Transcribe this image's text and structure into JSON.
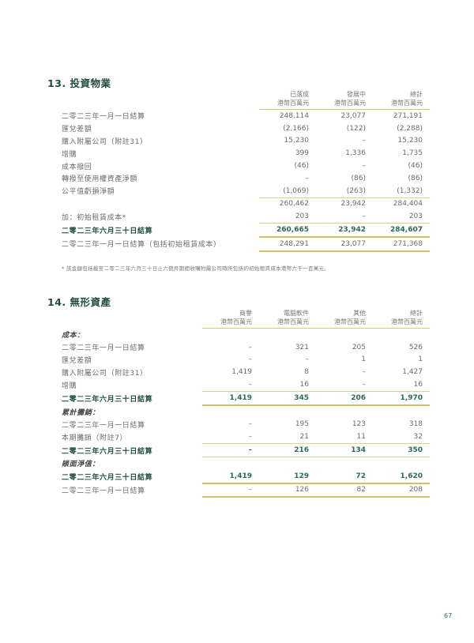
{
  "section13": {
    "heading": "13. 投資物業",
    "columns": [
      {
        "name": "已落成",
        "unit": "港幣百萬元"
      },
      {
        "name": "發展中",
        "unit": "港幣百萬元"
      },
      {
        "name": "總計",
        "unit": "港幣百萬元"
      }
    ],
    "rows": [
      {
        "label": "二零二三年一月一日結算",
        "values": [
          "248,114",
          "23,077",
          "271,191"
        ],
        "style": ""
      },
      {
        "label": "匯兌差額",
        "values": [
          "(2,166)",
          "(122)",
          "(2,288)"
        ],
        "style": ""
      },
      {
        "label": "購入附屬公司（附註31）",
        "values": [
          "15,230",
          "–",
          "15,230"
        ],
        "style": ""
      },
      {
        "label": "增購",
        "values": [
          "399",
          "1,336",
          "1,735"
        ],
        "style": ""
      },
      {
        "label": "成本撥回",
        "values": [
          "(46)",
          "–",
          "(46)"
        ],
        "style": ""
      },
      {
        "label": "轉撥至使用權資產淨額",
        "values": [
          "–",
          "(86)",
          "(86)"
        ],
        "style": ""
      },
      {
        "label": "公平值虧損淨額",
        "values": [
          "(1,069)",
          "(263)",
          "(1,332)"
        ],
        "style": ""
      },
      {
        "label": "",
        "values": [
          "260,462",
          "23,942",
          "284,404"
        ],
        "style": "top"
      },
      {
        "label": "加：初始租賃成本*",
        "values": [
          "203",
          "–",
          "203"
        ],
        "style": ""
      },
      {
        "label": "二零二三年六月三十日結算",
        "values": [
          "260,665",
          "23,942",
          "284,607"
        ],
        "style": "top bold dbl"
      },
      {
        "label": "二零二三年一月一日結算（包括初始租賃成本）",
        "values": [
          "248,291",
          "23,077",
          "271,368"
        ],
        "style": "dbl"
      }
    ],
    "footnote": "* 該金額包括截至二零二三年六月三十日止六個月期間收購附屬公司時所包括的初始租賃成本港幣六千一百萬元。"
  },
  "section14": {
    "heading": "14. 無形資產",
    "columns": [
      {
        "name": "商譽",
        "unit": "港幣百萬元"
      },
      {
        "name": "電腦軟件",
        "unit": "港幣百萬元"
      },
      {
        "name": "其他",
        "unit": "港幣百萬元"
      },
      {
        "name": "總計",
        "unit": "港幣百萬元"
      }
    ],
    "rows": [
      {
        "label": "成本：",
        "values": [
          "",
          "",
          "",
          ""
        ],
        "style": "ital"
      },
      {
        "label": "二零二三年一月一日結算",
        "values": [
          "–",
          "321",
          "205",
          "526"
        ],
        "style": ""
      },
      {
        "label": "匯兌差額",
        "values": [
          "–",
          "–",
          "1",
          "1"
        ],
        "style": ""
      },
      {
        "label": "購入附屬公司（附註31）",
        "values": [
          "1,419",
          "8",
          "–",
          "1,427"
        ],
        "style": ""
      },
      {
        "label": "增購",
        "values": [
          "–",
          "16",
          "–",
          "16"
        ],
        "style": ""
      },
      {
        "label": "二零二三年六月三十日結算",
        "values": [
          "1,419",
          "345",
          "206",
          "1,970"
        ],
        "style": "top bold dbl"
      },
      {
        "label": "累計攤銷：",
        "values": [
          "",
          "",
          "",
          ""
        ],
        "style": "ital"
      },
      {
        "label": "二零二三年一月一日結算",
        "values": [
          "–",
          "195",
          "123",
          "318"
        ],
        "style": ""
      },
      {
        "label": "本期攤銷（附註7）",
        "values": [
          "–",
          "21",
          "11",
          "32"
        ],
        "style": ""
      },
      {
        "label": "二零二三年六月三十日結算",
        "values": [
          "–",
          "216",
          "134",
          "350"
        ],
        "style": "top bold bot"
      },
      {
        "label": "賬面淨值：",
        "values": [
          "",
          "",
          "",
          ""
        ],
        "style": "ital"
      },
      {
        "label": "二零二三年六月三十日結算",
        "values": [
          "1,419",
          "129",
          "72",
          "1,620"
        ],
        "style": "bold dbl"
      },
      {
        "label": "二零二三年一月一日結算",
        "values": [
          "–",
          "126",
          "82",
          "208"
        ],
        "style": "dbl"
      }
    ]
  },
  "page_number": "67",
  "colors": {
    "heading": "#1f4e3d",
    "rule": "#d8c878",
    "bold_value": "#2b6b55"
  }
}
